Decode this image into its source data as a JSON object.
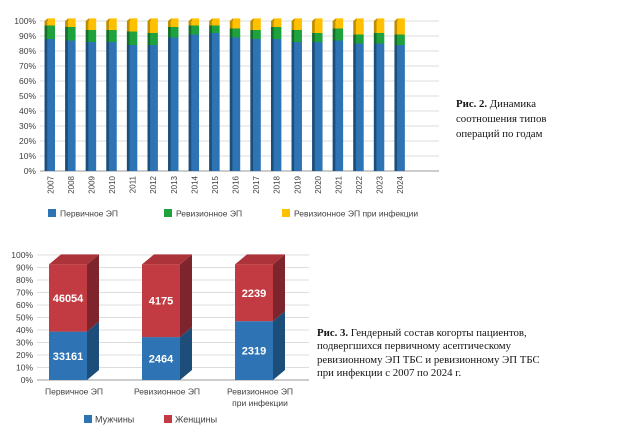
{
  "colors": {
    "blue": "#2E74B5",
    "blue_dark": "#1D4E79",
    "green": "#1EA23E",
    "green_dark": "#136F29",
    "yellow": "#FFC000",
    "yellow_dark": "#BD8E00",
    "red": "#C23B42",
    "red_dark": "#7E242C",
    "red_top": "#AD333B",
    "grid": "#DCDCDC",
    "axis": "#9B9B9B",
    "tick_text": "#404040",
    "bar_label_text": "#FFFFFF"
  },
  "chart_data": [
    {
      "type": "bar",
      "subtype": "stacked-100-column",
      "title": "",
      "categories": [
        "2007",
        "2008",
        "2009",
        "2010",
        "2011",
        "2012",
        "2013",
        "2014",
        "2015",
        "2016",
        "2017",
        "2018",
        "2019",
        "2020",
        "2021",
        "2022",
        "2023",
        "2024"
      ],
      "series": [
        {
          "name": "Первичное ЭП",
          "color": "blue",
          "values": [
            88,
            87,
            86,
            86,
            84,
            84,
            89,
            91,
            92,
            89,
            88,
            88,
            86,
            86,
            87,
            85,
            85,
            84
          ]
        },
        {
          "name": "Ревизионное ЭП",
          "color": "green",
          "values": [
            9,
            9,
            8,
            8,
            9,
            8,
            7,
            6,
            5,
            6,
            6,
            8,
            8,
            6,
            8,
            6,
            7,
            7
          ]
        },
        {
          "name": "Ревизионное ЭП при инфекции",
          "color": "yellow",
          "values": [
            3,
            4,
            6,
            6,
            7,
            8,
            4,
            3,
            3,
            5,
            6,
            4,
            6,
            8,
            5,
            9,
            8,
            9
          ]
        }
      ],
      "yticks": [
        "0%",
        "10%",
        "20%",
        "30%",
        "40%",
        "50%",
        "60%",
        "70%",
        "80%",
        "90%",
        "100%"
      ],
      "ylim": [
        0,
        100
      ],
      "grid": true,
      "legend_position": "bottom"
    },
    {
      "type": "bar",
      "subtype": "stacked-100-column-3d",
      "title": "",
      "categories": [
        "Первичное ЭП",
        "Ревизионное ЭП",
        "Ревизионное ЭП\nпри инфекции"
      ],
      "series": [
        {
          "name": "Мужчины",
          "color": "blue",
          "values": [
            33161,
            2464,
            2319
          ]
        },
        {
          "name": "Женщины",
          "color": "red",
          "values": [
            46054,
            4175,
            2239
          ]
        }
      ],
      "data_labels": true,
      "yticks": [
        "0%",
        "10%",
        "20%",
        "30%",
        "40%",
        "50%",
        "60%",
        "70%",
        "80%",
        "90%",
        "100%"
      ],
      "ylim": [
        0,
        100
      ],
      "grid": true,
      "legend_position": "bottom"
    }
  ],
  "captions": {
    "fig2": {
      "bold": "Рис. 2.",
      "line1_rest": " Динамика",
      "lines": [
        "соотношения типов",
        "операций по годам"
      ]
    },
    "fig3": {
      "bold": "Рис. 3.",
      "line1_rest": " Гендерный состав когорты пациентов,",
      "lines": [
        "подвергшихся первичному асептическому",
        "ревизионному ЭП ТБС и ревизионному ЭП ТБС",
        "при инфекции с 2007 по 2024 г."
      ]
    }
  }
}
